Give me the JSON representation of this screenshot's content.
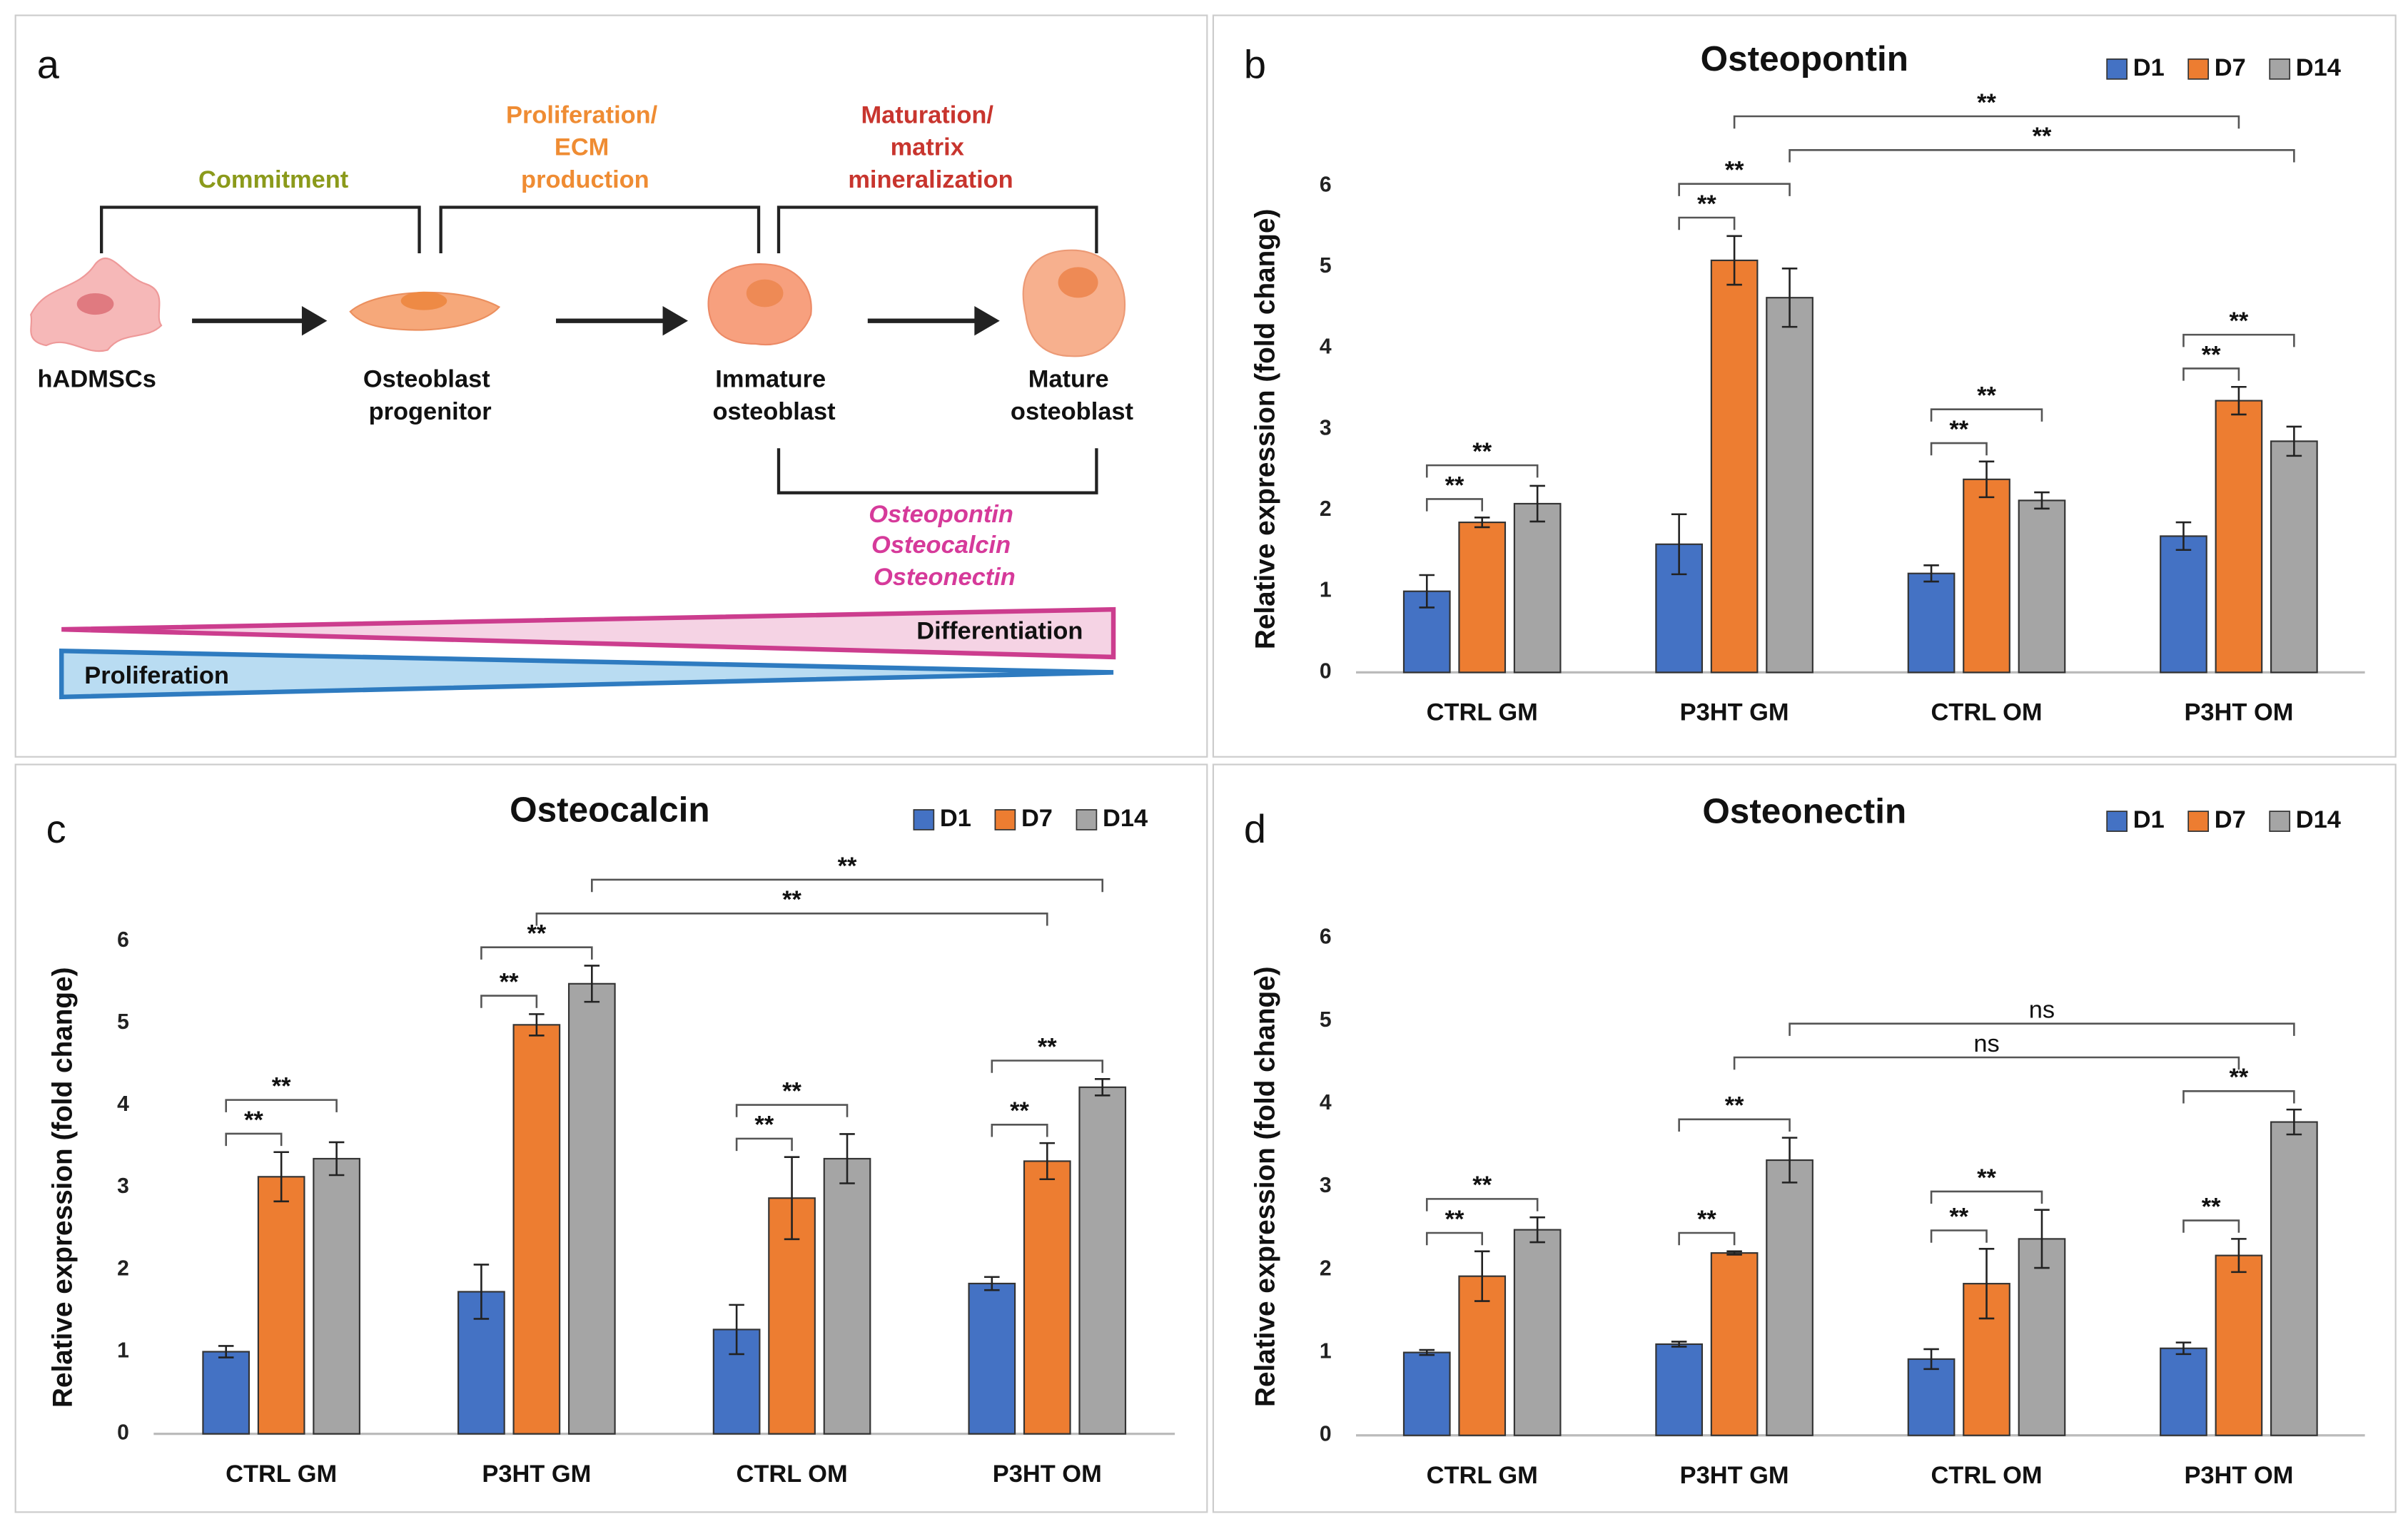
{
  "diagram": {
    "label": "a",
    "phases": [
      {
        "lines": [
          "Commitment"
        ]
      },
      {
        "lines": [
          "Proliferation/",
          "ECM",
          "production"
        ]
      },
      {
        "lines": [
          "Maturation/",
          "matrix",
          "mineralization"
        ]
      }
    ],
    "cells": [
      {
        "lines": [
          "hADMSCs"
        ]
      },
      {
        "lines": [
          "Osteoblast",
          "progenitor"
        ]
      },
      {
        "lines": [
          "Immature",
          "osteoblast"
        ]
      },
      {
        "lines": [
          "Mature",
          "osteoblast"
        ]
      }
    ],
    "markers": [
      "Osteopontin",
      "Osteocalcin",
      "Osteonectin"
    ],
    "gradients": [
      "Differentiation",
      "Proliferation"
    ]
  },
  "chart_data": [
    {
      "type": "bar",
      "label": "b",
      "title": "Osteopontin",
      "y_label": "Relative expression (fold change)",
      "categories": [
        "CTRL GM",
        "P3HT GM",
        "CTRL OM",
        "P3HT OM"
      ],
      "series": [
        {
          "name": "D1",
          "color": "#4472c4",
          "values": [
            1.0,
            1.58,
            1.22,
            1.68
          ],
          "errors": [
            0.2,
            0.37,
            0.1,
            0.17
          ]
        },
        {
          "name": "D7",
          "color": "#ed7d31",
          "values": [
            1.85,
            5.08,
            2.38,
            3.35
          ],
          "errors": [
            0.06,
            0.3,
            0.22,
            0.17
          ]
        },
        {
          "name": "D14",
          "color": "#a5a5a5",
          "values": [
            2.08,
            4.62,
            2.12,
            2.85
          ],
          "errors": [
            0.22,
            0.36,
            0.1,
            0.18
          ]
        }
      ],
      "ylim": [
        0,
        6
      ],
      "yticks": [
        0,
        1,
        2,
        3,
        4,
        5,
        6
      ],
      "grid": false,
      "legend": "top-right",
      "brackets": [
        {
          "from": [
            0,
            0
          ],
          "to": [
            0,
            1
          ],
          "label": "**"
        },
        {
          "from": [
            0,
            0
          ],
          "to": [
            0,
            2
          ],
          "label": "**"
        },
        {
          "from": [
            1,
            0
          ],
          "to": [
            1,
            1
          ],
          "label": "**"
        },
        {
          "from": [
            1,
            0
          ],
          "to": [
            1,
            2
          ],
          "label": "**"
        },
        {
          "from": [
            2,
            0
          ],
          "to": [
            2,
            1
          ],
          "label": "**"
        },
        {
          "from": [
            2,
            0
          ],
          "to": [
            2,
            2
          ],
          "label": "**"
        },
        {
          "from": [
            3,
            0
          ],
          "to": [
            3,
            1
          ],
          "label": "**"
        },
        {
          "from": [
            3,
            0
          ],
          "to": [
            3,
            2
          ],
          "label": "**"
        },
        {
          "from": [
            1,
            2
          ],
          "to": [
            3,
            2
          ],
          "label": "**"
        },
        {
          "from": [
            1,
            1
          ],
          "to": [
            3,
            1
          ],
          "label": "**"
        }
      ]
    },
    {
      "type": "bar",
      "label": "c",
      "title": "Osteocalcin",
      "y_label": "Relative expression (fold change)",
      "categories": [
        "CTRL GM",
        "P3HT GM",
        "CTRL OM",
        "P3HT OM"
      ],
      "series": [
        {
          "name": "D1",
          "color": "#4472c4",
          "values": [
            1.0,
            1.73,
            1.27,
            1.83
          ],
          "errors": [
            0.07,
            0.33,
            0.3,
            0.08
          ]
        },
        {
          "name": "D7",
          "color": "#ed7d31",
          "values": [
            3.13,
            4.98,
            2.87,
            3.32
          ],
          "errors": [
            0.3,
            0.13,
            0.5,
            0.22
          ]
        },
        {
          "name": "D14",
          "color": "#a5a5a5",
          "values": [
            3.35,
            5.48,
            3.35,
            4.22
          ],
          "errors": [
            0.2,
            0.22,
            0.3,
            0.1
          ]
        }
      ],
      "ylim": [
        0,
        6
      ],
      "yticks": [
        0,
        1,
        2,
        3,
        4,
        5,
        6
      ],
      "grid": false,
      "legend": "top-right",
      "brackets": [
        {
          "from": [
            0,
            0
          ],
          "to": [
            0,
            1
          ],
          "label": "**"
        },
        {
          "from": [
            0,
            0
          ],
          "to": [
            0,
            2
          ],
          "label": "**"
        },
        {
          "from": [
            1,
            0
          ],
          "to": [
            1,
            1
          ],
          "label": "**"
        },
        {
          "from": [
            1,
            0
          ],
          "to": [
            1,
            2
          ],
          "label": "**"
        },
        {
          "from": [
            2,
            0
          ],
          "to": [
            2,
            1
          ],
          "label": "**"
        },
        {
          "from": [
            2,
            0
          ],
          "to": [
            2,
            2
          ],
          "label": "**"
        },
        {
          "from": [
            3,
            0
          ],
          "to": [
            3,
            1
          ],
          "label": "**"
        },
        {
          "from": [
            3,
            0
          ],
          "to": [
            3,
            2
          ],
          "label": "**"
        },
        {
          "from": [
            1,
            1
          ],
          "to": [
            3,
            1
          ],
          "label": "**"
        },
        {
          "from": [
            1,
            2
          ],
          "to": [
            3,
            2
          ],
          "label": "**"
        }
      ]
    },
    {
      "type": "bar",
      "label": "d",
      "title": "Osteonectin",
      "y_label": "Relative expression (fold change)",
      "categories": [
        "CTRL GM",
        "P3HT GM",
        "CTRL OM",
        "P3HT OM"
      ],
      "series": [
        {
          "name": "D1",
          "color": "#4472c4",
          "values": [
            1.0,
            1.1,
            0.92,
            1.05
          ],
          "errors": [
            0.03,
            0.03,
            0.12,
            0.07
          ]
        },
        {
          "name": "D7",
          "color": "#ed7d31",
          "values": [
            1.92,
            2.2,
            1.83,
            2.17
          ],
          "errors": [
            0.3,
            0.02,
            0.42,
            0.2
          ]
        },
        {
          "name": "D14",
          "color": "#a5a5a5",
          "values": [
            2.48,
            3.32,
            2.37,
            3.78
          ],
          "errors": [
            0.15,
            0.27,
            0.35,
            0.15
          ]
        }
      ],
      "ylim": [
        0,
        6
      ],
      "yticks": [
        0,
        1,
        2,
        3,
        4,
        5,
        6
      ],
      "grid": false,
      "legend": "top-right",
      "brackets": [
        {
          "from": [
            0,
            0
          ],
          "to": [
            0,
            1
          ],
          "label": "**"
        },
        {
          "from": [
            0,
            0
          ],
          "to": [
            0,
            2
          ],
          "label": "**"
        },
        {
          "from": [
            1,
            0
          ],
          "to": [
            1,
            1
          ],
          "label": "**"
        },
        {
          "from": [
            1,
            0
          ],
          "to": [
            1,
            2
          ],
          "label": "**"
        },
        {
          "from": [
            2,
            0
          ],
          "to": [
            2,
            1
          ],
          "label": "**"
        },
        {
          "from": [
            2,
            0
          ],
          "to": [
            2,
            2
          ],
          "label": "**"
        },
        {
          "from": [
            3,
            0
          ],
          "to": [
            3,
            1
          ],
          "label": "**"
        },
        {
          "from": [
            3,
            0
          ],
          "to": [
            3,
            2
          ],
          "label": "**"
        },
        {
          "from": [
            1,
            1
          ],
          "to": [
            3,
            1
          ],
          "label": "ns"
        },
        {
          "from": [
            1,
            2
          ],
          "to": [
            3,
            2
          ],
          "label": "ns"
        }
      ]
    }
  ]
}
